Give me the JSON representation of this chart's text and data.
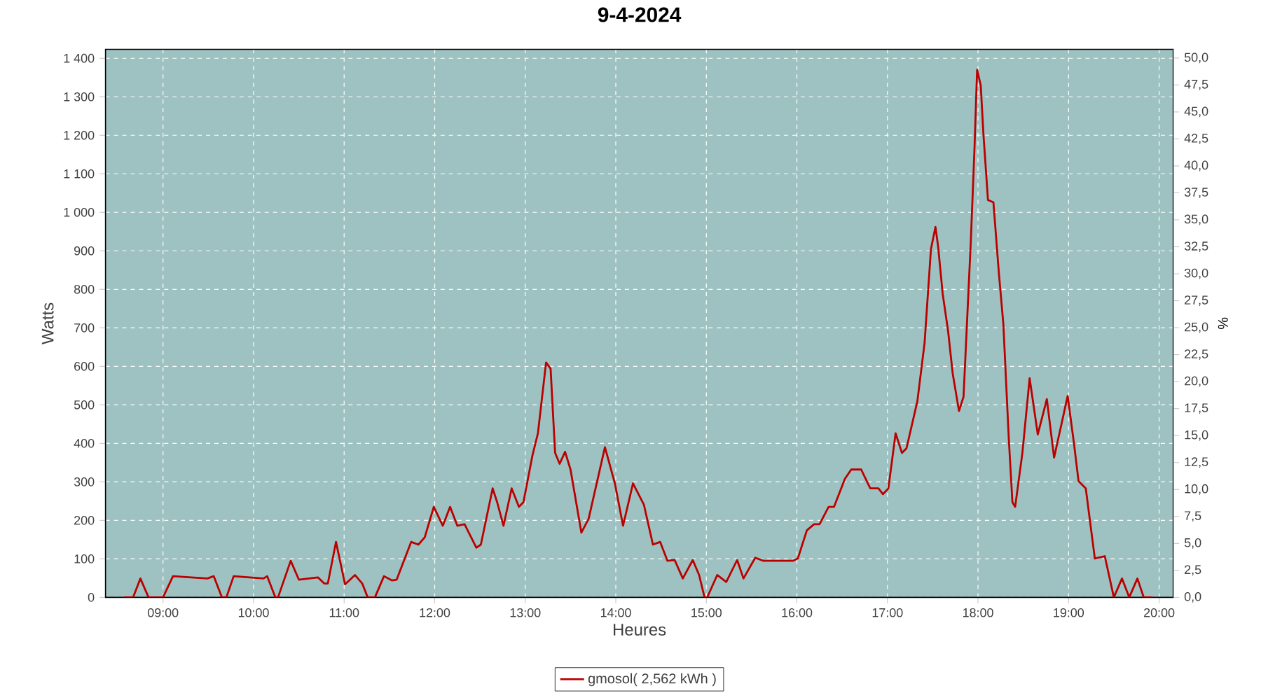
{
  "chart_data": {
    "type": "line",
    "title": "9-4-2024",
    "xlabel": "Heures",
    "ylabel": "Watts",
    "y2label": "%",
    "xlim": [
      8.365,
      20.155
    ],
    "xticks": [
      {
        "value": 9,
        "label": "09:00"
      },
      {
        "value": 10,
        "label": "10:00"
      },
      {
        "value": 11,
        "label": "11:00"
      },
      {
        "value": 12,
        "label": "12:00"
      },
      {
        "value": 13,
        "label": "13:00"
      },
      {
        "value": 14,
        "label": "14:00"
      },
      {
        "value": 15,
        "label": "15:00"
      },
      {
        "value": 16,
        "label": "16:00"
      },
      {
        "value": 17,
        "label": "17:00"
      },
      {
        "value": 18,
        "label": "18:00"
      },
      {
        "value": 19,
        "label": "19:00"
      },
      {
        "value": 20,
        "label": "20:00"
      }
    ],
    "ylim": [
      0,
      1423
    ],
    "yticks": [
      0,
      100,
      200,
      300,
      400,
      500,
      600,
      700,
      800,
      900,
      {
        "value": 1000,
        "label": "1 000"
      },
      {
        "value": 1100,
        "label": "1 100"
      },
      {
        "value": 1200,
        "label": "1 200"
      },
      {
        "value": 1300,
        "label": "1 300"
      },
      {
        "value": 1400,
        "label": "1 400"
      }
    ],
    "y2lim": [
      0,
      50.8
    ],
    "y2ticks": [
      {
        "value": 0,
        "label": "0,0"
      },
      {
        "value": 2.5,
        "label": "2,5"
      },
      {
        "value": 5,
        "label": "5,0"
      },
      {
        "value": 7.5,
        "label": "7,5"
      },
      {
        "value": 10,
        "label": "10,0"
      },
      {
        "value": 12.5,
        "label": "12,5"
      },
      {
        "value": 15,
        "label": "15,0"
      },
      {
        "value": 17.5,
        "label": "17,5"
      },
      {
        "value": 20,
        "label": "20,0"
      },
      {
        "value": 22.5,
        "label": "22,5"
      },
      {
        "value": 25,
        "label": "25,0"
      },
      {
        "value": 27.5,
        "label": "27,5"
      },
      {
        "value": 30,
        "label": "30,0"
      },
      {
        "value": 32.5,
        "label": "32,5"
      },
      {
        "value": 35,
        "label": "35,0"
      },
      {
        "value": 37.5,
        "label": "37,5"
      },
      {
        "value": 40,
        "label": "40,0"
      },
      {
        "value": 42.5,
        "label": "42,5"
      },
      {
        "value": 45,
        "label": "45,0"
      },
      {
        "value": 47.5,
        "label": "47,5"
      },
      {
        "value": 50,
        "label": "50,0"
      }
    ],
    "grid": true,
    "legend": "bottom",
    "marker": "none",
    "series": [
      {
        "name": "gmosol( 2,562 kWh )",
        "color": "#bb0000",
        "x": [
          8.57,
          8.67,
          8.75,
          8.84,
          8.9,
          9.0,
          9.11,
          9.49,
          9.56,
          9.65,
          9.7,
          9.78,
          10.11,
          10.15,
          10.24,
          10.27,
          10.41,
          10.5,
          10.71,
          10.78,
          10.82,
          10.91,
          11.01,
          11.12,
          11.2,
          11.26,
          11.34,
          11.44,
          11.53,
          11.58,
          11.74,
          11.82,
          11.89,
          11.99,
          12.09,
          12.17,
          12.25,
          12.33,
          12.46,
          12.51,
          12.64,
          12.69,
          12.76,
          12.85,
          12.93,
          12.98,
          13.08,
          13.14,
          13.23,
          13.28,
          13.33,
          13.38,
          13.44,
          13.5,
          13.62,
          13.7,
          13.88,
          13.99,
          14.08,
          14.19,
          14.31,
          14.41,
          14.49,
          14.57,
          14.65,
          14.74,
          14.85,
          14.92,
          14.98,
          15.01,
          15.12,
          15.22,
          15.34,
          15.41,
          15.54,
          15.63,
          15.86,
          15.96,
          16.01,
          16.11,
          16.19,
          16.25,
          16.35,
          16.41,
          16.53,
          16.6,
          16.71,
          16.81,
          16.9,
          16.95,
          17.01,
          17.09,
          17.16,
          17.21,
          17.33,
          17.41,
          17.48,
          17.53,
          17.56,
          17.61,
          17.67,
          17.72,
          17.79,
          17.84,
          17.92,
          17.96,
          17.99,
          18.03,
          18.06,
          18.11,
          18.17,
          18.23,
          18.28,
          18.34,
          18.38,
          18.41,
          18.49,
          18.57,
          18.66,
          18.76,
          18.84,
          18.99,
          19.06,
          19.11,
          19.19,
          19.29,
          19.4,
          19.5,
          19.59,
          19.67,
          19.76,
          19.83,
          19.93
        ],
        "values": [
          0,
          0,
          49,
          0,
          0,
          0,
          55,
          49,
          55,
          0,
          0,
          55,
          49,
          55,
          0,
          0,
          95,
          46,
          52,
          36,
          36,
          144,
          34,
          58,
          36,
          0,
          0,
          55,
          44,
          46,
          144,
          137,
          156,
          235,
          186,
          235,
          186,
          190,
          129,
          137,
          283,
          247,
          186,
          283,
          235,
          247,
          369,
          426,
          610,
          594,
          375,
          347,
          378,
          332,
          168,
          204,
          390,
          296,
          186,
          296,
          241,
          137,
          144,
          95,
          97,
          49,
          97,
          58,
          0,
          0,
          58,
          40,
          97,
          49,
          103,
          95,
          95,
          95,
          101,
          174,
          190,
          190,
          235,
          235,
          308,
          332,
          332,
          283,
          283,
          268,
          283,
          426,
          375,
          387,
          509,
          661,
          904,
          962,
          910,
          788,
          691,
          582,
          484,
          521,
          922,
          1159,
          1370,
          1330,
          1202,
          1032,
          1026,
          843,
          709,
          411,
          247,
          235,
          375,
          569,
          423,
          515,
          363,
          523,
          399,
          302,
          283,
          101,
          107,
          0,
          49,
          0,
          49,
          0,
          0
        ]
      }
    ]
  }
}
